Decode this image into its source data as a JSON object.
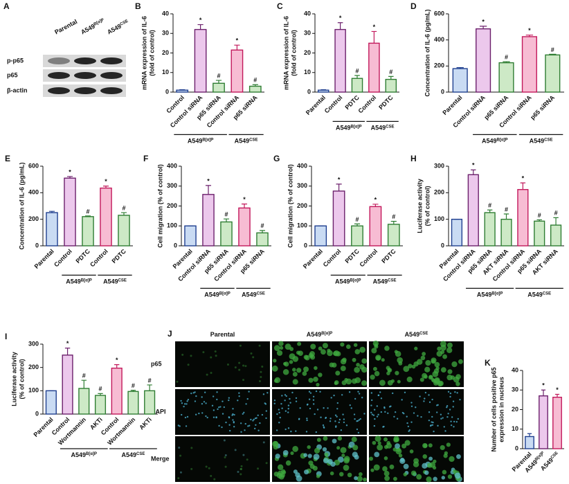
{
  "blot": {
    "panel": "A",
    "lanes": [
      {
        "label": "Parental"
      },
      {
        "label": "A549",
        "sup": "B[α]P"
      },
      {
        "label": "A549",
        "sup": "CSE"
      }
    ],
    "rows": [
      "p-p65",
      "p65",
      "β-actin"
    ]
  },
  "microscopy": {
    "panel": "J",
    "columns": [
      {
        "label": "Parental"
      },
      {
        "label": "A549",
        "sup": "B[α]P"
      },
      {
        "label": "A549",
        "sup": "CSE"
      }
    ],
    "rows": [
      "p65",
      "DAPI",
      "Merge"
    ]
  },
  "chart_data": [
    {
      "type": "bar",
      "panel": "B",
      "ylabel": [
        "mRNA expression of IL-6",
        "(fold of control)"
      ],
      "ylim": [
        0,
        40
      ],
      "yticks": [
        0,
        10,
        20,
        30,
        40
      ],
      "categories": [
        "Control",
        "Control siRNA",
        "p65 siRNA",
        "Control siRNA",
        "p65 siRNA"
      ],
      "values": [
        1,
        32,
        4.5,
        21.5,
        3
      ],
      "errors": [
        0.2,
        2.5,
        1.5,
        2.5,
        0.8
      ],
      "annotations": [
        null,
        "*",
        "#",
        "*",
        "#"
      ],
      "colors": [
        "#c9dbf3",
        "#ecc8ec",
        "#cde9c6",
        "#f7bcd3",
        "#cde9c6"
      ],
      "edge_colors": [
        "#1f3f8f",
        "#6b1f6b",
        "#2e7d32",
        "#c2185b",
        "#2e7d32"
      ],
      "groups": [
        {
          "label": "A549",
          "sup": "B[α]P",
          "start": 0,
          "end": 2
        },
        {
          "label": "A549",
          "sup": "CSE",
          "start": 3,
          "end": 4
        }
      ]
    },
    {
      "type": "bar",
      "panel": "C",
      "ylabel": [
        "mRNA expression of IL-6",
        "(fold of control)"
      ],
      "ylim": [
        0,
        40
      ],
      "yticks": [
        0,
        10,
        20,
        30,
        40
      ],
      "categories": [
        "Parental",
        "Control",
        "PDTC",
        "Control",
        "PDTC"
      ],
      "values": [
        1,
        32,
        7,
        25,
        6.5
      ],
      "errors": [
        0.2,
        3.5,
        1.5,
        6,
        1.5
      ],
      "annotations": [
        null,
        "*",
        "#",
        "*",
        "#"
      ],
      "colors": [
        "#c9dbf3",
        "#ecc8ec",
        "#cde9c6",
        "#f7bcd3",
        "#cde9c6"
      ],
      "edge_colors": [
        "#1f3f8f",
        "#6b1f6b",
        "#2e7d32",
        "#c2185b",
        "#2e7d32"
      ],
      "groups": [
        {
          "label": "A549",
          "sup": "B[α]P",
          "start": 1,
          "end": 2
        },
        {
          "label": "A549",
          "sup": "CSE",
          "start": 3,
          "end": 4
        }
      ]
    },
    {
      "type": "bar",
      "panel": "D",
      "ylabel": [
        "Concentration of IL-6 (pg/mL)"
      ],
      "ylim": [
        0,
        600
      ],
      "yticks": [
        0,
        200,
        400,
        600
      ],
      "categories": [
        "Parental",
        "Control siRNA",
        "p65 siRNA",
        "Control siRNA",
        "p65 siRNA"
      ],
      "values": [
        180,
        485,
        225,
        425,
        285
      ],
      "errors": [
        8,
        20,
        8,
        12,
        5
      ],
      "annotations": [
        null,
        "*",
        "#",
        "*",
        "#"
      ],
      "colors": [
        "#c9dbf3",
        "#ecc8ec",
        "#cde9c6",
        "#f7bcd3",
        "#cde9c6"
      ],
      "edge_colors": [
        "#1f3f8f",
        "#6b1f6b",
        "#2e7d32",
        "#c2185b",
        "#2e7d32"
      ],
      "groups": [
        {
          "label": "A549",
          "sup": "B[α]P",
          "start": 1,
          "end": 2
        },
        {
          "label": "A549",
          "sup": "CSE",
          "start": 3,
          "end": 4
        }
      ]
    },
    {
      "type": "bar",
      "panel": "E",
      "ylabel": [
        "Concentration of IL-6 (pg/mL)"
      ],
      "ylim": [
        0,
        600
      ],
      "yticks": [
        0,
        200,
        400,
        600
      ],
      "categories": [
        "Parental",
        "Control",
        "PDTC",
        "Control",
        "PDTC"
      ],
      "values": [
        250,
        510,
        220,
        435,
        230
      ],
      "errors": [
        10,
        12,
        5,
        15,
        20
      ],
      "annotations": [
        null,
        "*",
        "#",
        "*",
        "#"
      ],
      "colors": [
        "#c9dbf3",
        "#ecc8ec",
        "#cde9c6",
        "#f7bcd3",
        "#cde9c6"
      ],
      "edge_colors": [
        "#1f3f8f",
        "#6b1f6b",
        "#2e7d32",
        "#c2185b",
        "#2e7d32"
      ],
      "groups": [
        {
          "label": "A549",
          "sup": "B[α]P",
          "start": 1,
          "end": 2
        },
        {
          "label": "A549",
          "sup": "CSE",
          "start": 3,
          "end": 4
        }
      ]
    },
    {
      "type": "bar",
      "panel": "F",
      "ylabel": [
        "Cell migration (% of control)"
      ],
      "ylim": [
        0,
        400
      ],
      "yticks": [
        0,
        100,
        200,
        300,
        400
      ],
      "categories": [
        "Parental",
        "Control siRNA",
        "p65 siRNA",
        "Control siRNA",
        "p65 siRNA"
      ],
      "values": [
        100,
        258,
        120,
        190,
        65
      ],
      "errors": [
        0,
        45,
        15,
        20,
        12
      ],
      "annotations": [
        null,
        "*",
        "#",
        "*",
        "#"
      ],
      "colors": [
        "#c9dbf3",
        "#ecc8ec",
        "#cde9c6",
        "#f7bcd3",
        "#cde9c6"
      ],
      "edge_colors": [
        "#1f3f8f",
        "#6b1f6b",
        "#2e7d32",
        "#c2185b",
        "#2e7d32"
      ],
      "groups": [
        {
          "label": "A549",
          "sup": "B[α]P",
          "start": 1,
          "end": 2
        },
        {
          "label": "A549",
          "sup": "CSE",
          "start": 3,
          "end": 4
        }
      ]
    },
    {
      "type": "bar",
      "panel": "G",
      "ylabel": [
        "Cell migration (% of control)"
      ],
      "ylim": [
        0,
        400
      ],
      "yticks": [
        0,
        100,
        200,
        300,
        400
      ],
      "categories": [
        "Parental",
        "Control",
        "PDTC",
        "Control",
        "PDTC"
      ],
      "values": [
        100,
        275,
        100,
        197,
        108
      ],
      "errors": [
        0,
        35,
        10,
        12,
        15
      ],
      "annotations": [
        null,
        "*",
        "#",
        "*",
        "#"
      ],
      "colors": [
        "#c9dbf3",
        "#ecc8ec",
        "#cde9c6",
        "#f7bcd3",
        "#cde9c6"
      ],
      "edge_colors": [
        "#1f3f8f",
        "#6b1f6b",
        "#2e7d32",
        "#c2185b",
        "#2e7d32"
      ],
      "groups": [
        {
          "label": "A549",
          "sup": "B[α]P",
          "start": 1,
          "end": 2
        },
        {
          "label": "A549",
          "sup": "CSE",
          "start": 3,
          "end": 4
        }
      ]
    },
    {
      "type": "bar",
      "panel": "H",
      "ylabel": [
        "Luciferase activity",
        "(% of control)"
      ],
      "ylim": [
        0,
        300
      ],
      "yticks": [
        0,
        100,
        200,
        300
      ],
      "categories": [
        "Parental",
        "Control siRNA",
        "p65 siRNA",
        "AKT siRNA",
        "Control siRNA",
        "p65 siRNA",
        "AKT siRNA"
      ],
      "values": [
        100,
        268,
        125,
        100,
        212,
        93,
        78
      ],
      "errors": [
        0,
        18,
        10,
        20,
        25,
        5,
        28
      ],
      "annotations": [
        null,
        "*",
        "#",
        "#",
        "*",
        "#",
        "#"
      ],
      "colors": [
        "#c9dbf3",
        "#ecc8ec",
        "#cde9c6",
        "#cde9c6",
        "#f7bcd3",
        "#cde9c6",
        "#cde9c6"
      ],
      "edge_colors": [
        "#1f3f8f",
        "#6b1f6b",
        "#2e7d32",
        "#2e7d32",
        "#c2185b",
        "#2e7d32",
        "#2e7d32"
      ],
      "groups": [
        {
          "label": "A549",
          "sup": "B[α]P",
          "start": 1,
          "end": 3
        },
        {
          "label": "A549",
          "sup": "CSE",
          "start": 4,
          "end": 6
        }
      ]
    },
    {
      "type": "bar",
      "panel": "I",
      "ylabel": [
        "Luciferase activity",
        "(% of control)"
      ],
      "ylim": [
        0,
        300
      ],
      "yticks": [
        0,
        100,
        200,
        300
      ],
      "categories": [
        "Parental",
        "Control",
        "Wortmannin",
        "AKTi",
        "Control",
        "Wortmannin",
        "AKTi"
      ],
      "values": [
        100,
        253,
        110,
        80,
        197,
        97,
        100
      ],
      "errors": [
        0,
        30,
        35,
        8,
        15,
        5,
        25
      ],
      "annotations": [
        null,
        "*",
        "#",
        "#",
        "*",
        "#",
        "#"
      ],
      "colors": [
        "#c9dbf3",
        "#ecc8ec",
        "#cde9c6",
        "#cde9c6",
        "#f7bcd3",
        "#cde9c6",
        "#cde9c6"
      ],
      "edge_colors": [
        "#1f3f8f",
        "#6b1f6b",
        "#2e7d32",
        "#2e7d32",
        "#c2185b",
        "#2e7d32",
        "#2e7d32"
      ],
      "groups": [
        {
          "label": "A549",
          "sup": "B[α]P",
          "start": 1,
          "end": 3
        },
        {
          "label": "A549",
          "sup": "CSE",
          "start": 4,
          "end": 6
        }
      ]
    },
    {
      "type": "bar",
      "panel": "K",
      "ylabel": [
        "Number of cells positive p65",
        "expression in nucleus"
      ],
      "ylim": [
        0,
        40
      ],
      "yticks": [
        0,
        10,
        20,
        30,
        40
      ],
      "categories": [
        "Parental",
        "A549",
        "A549"
      ],
      "category_sups": [
        null,
        "B[α]P",
        "CSE"
      ],
      "values": [
        6.2,
        27,
        26.3
      ],
      "errors": [
        1.5,
        3,
        1.5
      ],
      "annotations": [
        null,
        "*",
        "*"
      ],
      "colors": [
        "#c9dbf3",
        "#ecc8ec",
        "#f7bcd3"
      ],
      "edge_colors": [
        "#1f3f8f",
        "#6b1f6b",
        "#c2185b"
      ]
    }
  ]
}
